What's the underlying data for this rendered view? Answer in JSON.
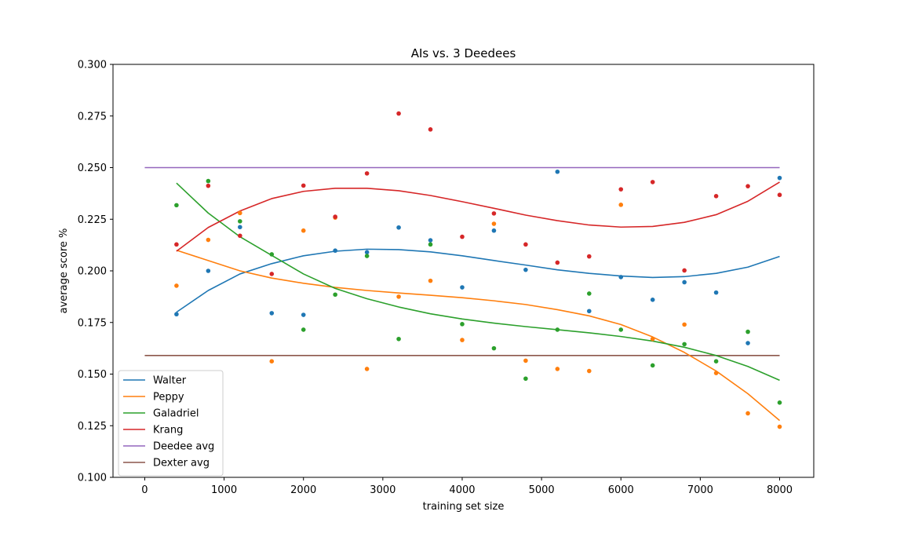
{
  "chart_data": {
    "type": "line",
    "title": "AIs vs. 3 Deedees",
    "xlabel": "training set size",
    "ylabel": "average score %",
    "xlim": [
      -400,
      8430
    ],
    "ylim": [
      0.1,
      0.3
    ],
    "xticks": [
      0,
      1000,
      2000,
      3000,
      4000,
      5000,
      6000,
      7000,
      8000
    ],
    "yticks": [
      0.1,
      0.125,
      0.15,
      0.175,
      0.2,
      0.225,
      0.25,
      0.275,
      0.3
    ],
    "xtick_labels": [
      "0",
      "1000",
      "2000",
      "3000",
      "4000",
      "5000",
      "6000",
      "7000",
      "8000"
    ],
    "ytick_labels": [
      "0.100",
      "0.125",
      "0.150",
      "0.175",
      "0.200",
      "0.225",
      "0.250",
      "0.275",
      "0.300"
    ],
    "grid": false,
    "legend_position": "bottom-left",
    "x": [
      400,
      800,
      1200,
      1600,
      2000,
      2400,
      2800,
      3200,
      3600,
      4000,
      4400,
      4800,
      5200,
      5600,
      6000,
      6400,
      6800,
      7200,
      7600,
      8000
    ],
    "series": [
      {
        "name": "Walter",
        "color": "#1f77b4",
        "points": [
          0.179,
          0.2,
          0.2212,
          0.1795,
          0.1787,
          0.2098,
          0.209,
          0.221,
          0.2148,
          0.192,
          0.2195,
          0.2005,
          0.248,
          0.1805,
          0.197,
          0.186,
          0.1945,
          0.1895,
          0.165,
          0.245
        ],
        "trend": [
          0.18,
          0.1905,
          0.1985,
          0.2035,
          0.2073,
          0.2095,
          0.2105,
          0.2103,
          0.2092,
          0.2073,
          0.205,
          0.2028,
          0.2005,
          0.1988,
          0.1975,
          0.1968,
          0.1972,
          0.1988,
          0.2018,
          0.207
        ]
      },
      {
        "name": "Peppy",
        "color": "#ff7f0e",
        "points": [
          0.1928,
          0.215,
          0.228,
          0.1562,
          0.2195,
          0.2258,
          0.1525,
          0.1875,
          0.1952,
          0.1665,
          0.2228,
          0.1565,
          0.1525,
          0.1515,
          0.232,
          0.167,
          0.174,
          0.1505,
          0.131,
          0.1245
        ],
        "trend": [
          0.21,
          0.205,
          0.2,
          0.1965,
          0.194,
          0.192,
          0.1905,
          0.1893,
          0.1882,
          0.187,
          0.1855,
          0.1837,
          0.1812,
          0.1782,
          0.174,
          0.168,
          0.1605,
          0.1515,
          0.1405,
          0.1275
        ]
      },
      {
        "name": "Galadriel",
        "color": "#2ca02c",
        "points": [
          0.2318,
          0.2435,
          0.224,
          0.208,
          0.1715,
          0.1885,
          0.2072,
          0.167,
          0.2128,
          0.1742,
          0.1625,
          0.1478,
          0.1715,
          0.189,
          0.1715,
          0.1542,
          0.1645,
          0.1562,
          0.1705,
          0.1362
        ],
        "trend": [
          0.2425,
          0.228,
          0.2165,
          0.2075,
          0.1985,
          0.1915,
          0.1865,
          0.1825,
          0.1792,
          0.1767,
          0.1747,
          0.173,
          0.1715,
          0.17,
          0.1682,
          0.166,
          0.163,
          0.159,
          0.1537,
          0.147
        ]
      },
      {
        "name": "Krang",
        "color": "#d62728",
        "points": [
          0.2128,
          0.2412,
          0.217,
          0.1985,
          0.2413,
          0.2262,
          0.2472,
          0.2762,
          0.2685,
          0.2165,
          0.2278,
          0.2128,
          0.204,
          0.207,
          0.2395,
          0.243,
          0.2002,
          0.2362,
          0.241,
          0.2368
        ],
        "trend": [
          0.2095,
          0.221,
          0.229,
          0.235,
          0.2385,
          0.24,
          0.24,
          0.2388,
          0.2365,
          0.2335,
          0.2303,
          0.227,
          0.2243,
          0.2222,
          0.2212,
          0.2215,
          0.2235,
          0.2272,
          0.2337,
          0.243
        ]
      }
    ],
    "hlines": [
      {
        "name": "Deedee avg",
        "color": "#9467bd",
        "y": 0.25,
        "x": [
          0,
          8000
        ]
      },
      {
        "name": "Dexter avg",
        "color": "#8c564b",
        "y": 0.159,
        "x": [
          0,
          8000
        ]
      }
    ]
  }
}
